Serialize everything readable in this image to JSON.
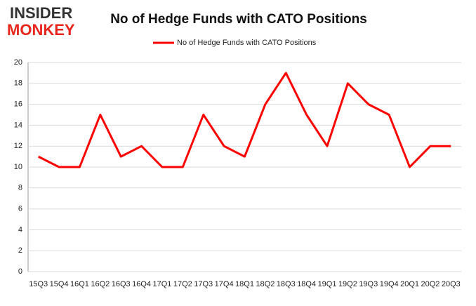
{
  "logo": {
    "line1": "INSIDER",
    "line2": "MONKEY"
  },
  "chart_data": {
    "type": "line",
    "title": "No of Hedge Funds with CATO Positions",
    "categories": [
      "15Q3",
      "15Q4",
      "16Q1",
      "16Q2",
      "16Q3",
      "16Q4",
      "17Q1",
      "17Q2",
      "17Q3",
      "17Q4",
      "18Q1",
      "18Q2",
      "18Q3",
      "18Q4",
      "19Q1",
      "19Q2",
      "19Q3",
      "19Q4",
      "20Q1",
      "20Q2",
      "20Q3"
    ],
    "series": [
      {
        "name": "No of Hedge Funds with CATO Positions",
        "color": "#ff0000",
        "values": [
          11,
          10,
          10,
          15,
          11,
          12,
          10,
          10,
          15,
          12,
          11,
          16,
          19,
          15,
          12,
          18,
          16,
          15,
          10,
          12,
          12
        ]
      }
    ],
    "ylim": [
      0,
      20
    ],
    "yticks": [
      0,
      2,
      4,
      6,
      8,
      10,
      12,
      14,
      16,
      18,
      20
    ],
    "grid": true,
    "legend": "top"
  }
}
